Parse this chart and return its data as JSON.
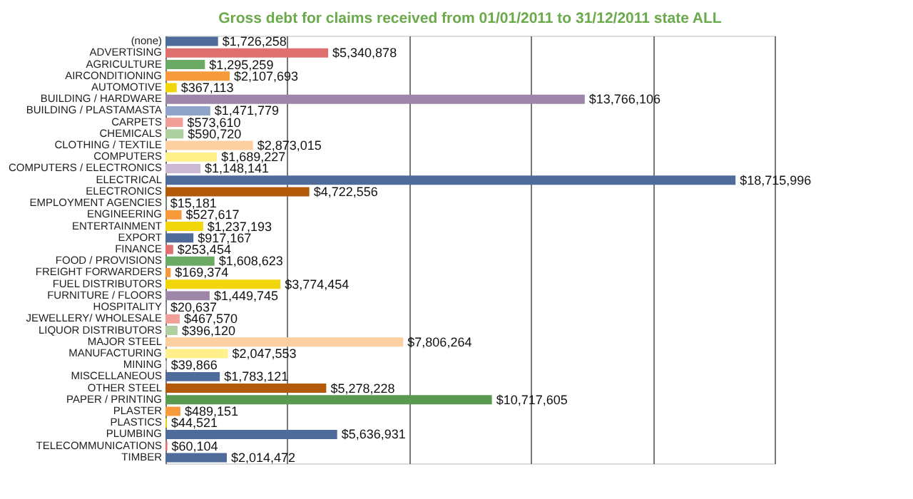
{
  "chart_data": {
    "type": "bar",
    "orientation": "horizontal",
    "title": "Gross debt for claims received from 01/01/2011 to 31/12/2011 state ALL",
    "categories": [
      "(none)",
      "ADVERTISING",
      "AGRICULTURE",
      "AIRCONDITIONING",
      "AUTOMOTIVE",
      "BUILDING / HARDWARE",
      "BUILDING / PLASTAMASTA",
      "CARPETS",
      "CHEMICALS",
      "CLOTHING / TEXTILE",
      "COMPUTERS",
      "COMPUTERS / ELECTRONICS",
      "ELECTRICAL",
      "ELECTRONICS",
      "EMPLOYMENT AGENCIES",
      "ENGINEERING",
      "ENTERTAINMENT",
      "EXPORT",
      "FINANCE",
      "FOOD / PROVISIONS",
      "FREIGHT FORWARDERS",
      "FUEL DISTRIBUTORS",
      "FURNITURE / FLOORS",
      "HOSPITALITY",
      "JEWELLERY/ WHOLESALE",
      "LIQUOR DISTRIBUTORS",
      "MAJOR STEEL",
      "MANUFACTURING",
      "MINING",
      "MISCELLANEOUS",
      "OTHER STEEL",
      "PAPER / PRINTING",
      "PLASTER",
      "PLASTICS",
      "PLUMBING",
      "TELECOMMUNICATIONS",
      "TIMBER"
    ],
    "values": [
      1726258,
      5340878,
      1295259,
      2107693,
      367113,
      13766106,
      1471779,
      573610,
      590720,
      2873015,
      1689227,
      1148141,
      18715996,
      4722556,
      15181,
      527617,
      1237193,
      917167,
      253454,
      1608623,
      169374,
      3774454,
      1449745,
      20637,
      467570,
      396120,
      7806264,
      2047553,
      39866,
      1783121,
      5278228,
      10717605,
      489151,
      44521,
      5636931,
      60104,
      2014472
    ],
    "value_labels": [
      "$1,726,258",
      "$5,340,878",
      "$1,295,259",
      "$2,107,693",
      "$367,113",
      "$13,766,106",
      "$1,471,779",
      "$573,610",
      "$590,720",
      "$2,873,015",
      "$1,689,227",
      "$1,148,141",
      "$18,715,996",
      "$4,722,556",
      "$15,181",
      "$527,617",
      "$1,237,193",
      "$917,167",
      "$253,454",
      "$1,608,623",
      "$169,374",
      "$3,774,454",
      "$1,449,745",
      "$20,637",
      "$467,570",
      "$396,120",
      "$7,806,264",
      "$2,047,553",
      "$39,866",
      "$1,783,121",
      "$5,278,228",
      "$10,717,605",
      "$489,151",
      "$44,521",
      "$5,636,931",
      "$60,104",
      "$2,014,472"
    ],
    "colors": [
      "#4f6b9a",
      "#e07070",
      "#6aaa64",
      "#f79a3c",
      "#f2d60c",
      "#9e86a8",
      "#8fa4c8",
      "#f0a098",
      "#aed0a0",
      "#fcd0a0",
      "#fff08a",
      "#cbb9d4",
      "#4f6b9a",
      "#b35a0a",
      "#6aaa64",
      "#f79a3c",
      "#f2d60c",
      "#4f6b9a",
      "#e07070",
      "#6aaa64",
      "#f79a3c",
      "#f2d60c",
      "#9e86a8",
      "#8fa4c8",
      "#f0a098",
      "#aed0a0",
      "#fcd0a0",
      "#fff08a",
      "#cbb9d4",
      "#4f6b9a",
      "#b35a0a",
      "#5a9a50",
      "#f79a3c",
      "#f2d60c",
      "#4f6b9a",
      "#e07070",
      "#4f6b9a"
    ],
    "xlim": [
      0,
      20000000
    ],
    "xticks": [
      {
        "value": 0,
        "label": null
      },
      {
        "value": 4000000,
        "label": null
      },
      {
        "value": 8000000,
        "label": null
      },
      {
        "value": 12000000,
        "label": null
      },
      {
        "value": 16000000,
        "label": null
      },
      {
        "value": 20000000,
        "label": null
      }
    ],
    "tick_labels": "y",
    "grid": "x"
  }
}
